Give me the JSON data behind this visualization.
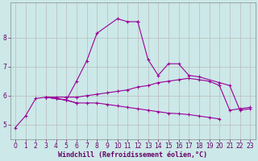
{
  "background_color": "#cce8e8",
  "line_color": "#990099",
  "grid_color": "#bbbbbb",
  "xlabel": "Windchill (Refroidissement éolien,°C)",
  "xlabel_color": "#660066",
  "tick_color": "#660066",
  "ylim": [
    4.5,
    9.2
  ],
  "xlim": [
    -0.5,
    23.5
  ],
  "yticks": [
    5,
    6,
    7,
    8
  ],
  "xticks": [
    0,
    1,
    2,
    3,
    4,
    5,
    6,
    7,
    8,
    9,
    10,
    11,
    12,
    13,
    14,
    15,
    16,
    17,
    18,
    19,
    20,
    21,
    22,
    23
  ],
  "series": {
    "curve1": {
      "x": [
        0,
        1,
        2,
        3,
        4,
        5,
        6,
        7,
        8,
        10,
        11,
        12
      ],
      "y": [
        4.9,
        5.3,
        5.9,
        5.95,
        5.9,
        5.85,
        6.5,
        7.2,
        8.15,
        8.65,
        8.55,
        8.55
      ]
    },
    "curve2": {
      "x": [
        3,
        4,
        5,
        6
      ],
      "y": [
        5.95,
        5.9,
        5.85,
        5.75
      ]
    },
    "curve3": {
      "x": [
        12,
        13,
        14,
        15,
        16,
        17,
        18,
        20,
        21,
        22,
        23
      ],
      "y": [
        8.55,
        7.25,
        6.7,
        7.1,
        7.1,
        6.7,
        6.65,
        6.45,
        6.35,
        5.5,
        5.55
      ]
    },
    "curve4": {
      "x": [
        3,
        4,
        5,
        6,
        7,
        8,
        9,
        10,
        11,
        12,
        13,
        14,
        15,
        16,
        17,
        18,
        19,
        20,
        21,
        22,
        23
      ],
      "y": [
        5.95,
        5.95,
        5.95,
        5.95,
        6.0,
        6.05,
        6.1,
        6.15,
        6.2,
        6.3,
        6.35,
        6.45,
        6.5,
        6.55,
        6.6,
        6.55,
        6.5,
        6.35,
        5.5,
        5.55,
        5.6
      ]
    },
    "curve5": {
      "x": [
        3,
        4,
        5,
        6,
        7,
        8,
        9,
        10,
        11,
        12,
        13,
        14,
        15,
        16,
        17,
        18,
        19,
        20
      ],
      "y": [
        5.95,
        5.9,
        5.85,
        5.75,
        5.75,
        5.75,
        5.7,
        5.65,
        5.6,
        5.55,
        5.5,
        5.45,
        5.4,
        5.38,
        5.35,
        5.3,
        5.25,
        5.2
      ]
    }
  }
}
